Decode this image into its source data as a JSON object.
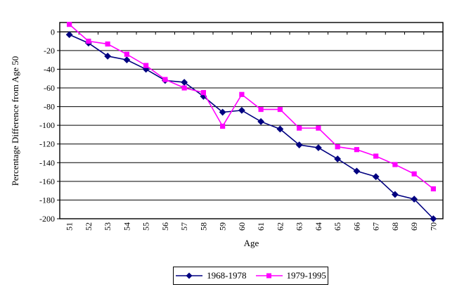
{
  "chart_data": {
    "type": "line",
    "title": "",
    "xlabel": "Age",
    "ylabel": "Percentage Difference from Age 50",
    "categories": [
      "51",
      "52",
      "53",
      "54",
      "55",
      "56",
      "57",
      "58",
      "59",
      "60",
      "61",
      "62",
      "63",
      "64",
      "65",
      "66",
      "67",
      "68",
      "69",
      "70"
    ],
    "series": [
      {
        "name": "1968-1978",
        "color": "#000080",
        "marker": "diamond",
        "values": [
          -3,
          -12,
          -26,
          -30,
          -40,
          -52,
          -54,
          -69,
          -86,
          -84,
          -96,
          -104,
          -121,
          -124,
          -136,
          -149,
          -155,
          -174,
          -179,
          -200
        ]
      },
      {
        "name": "1979-1995",
        "color": "#FF00FF",
        "marker": "square",
        "values": [
          8,
          -10,
          -13,
          -24,
          -36,
          -51,
          -60,
          -65,
          -101,
          -67,
          -83,
          -83,
          -103,
          -103,
          -123,
          -126,
          -133,
          -142,
          -152,
          -168
        ]
      }
    ],
    "ylim": [
      -200,
      10
    ],
    "ytick_interval": 20,
    "ytick_labels": [
      "0",
      "-20",
      "-40",
      "-60",
      "-80",
      "-100",
      "-120",
      "-140",
      "-160",
      "-180",
      "-200"
    ],
    "ytick_values": [
      0,
      -20,
      -40,
      -60,
      -80,
      -100,
      -120,
      -140,
      -160,
      -180,
      -200
    ],
    "grid": true,
    "legend_position": "bottom",
    "plot_border_color": "#000000",
    "gridline_color": "#000000",
    "background_color": "#ffffff"
  }
}
